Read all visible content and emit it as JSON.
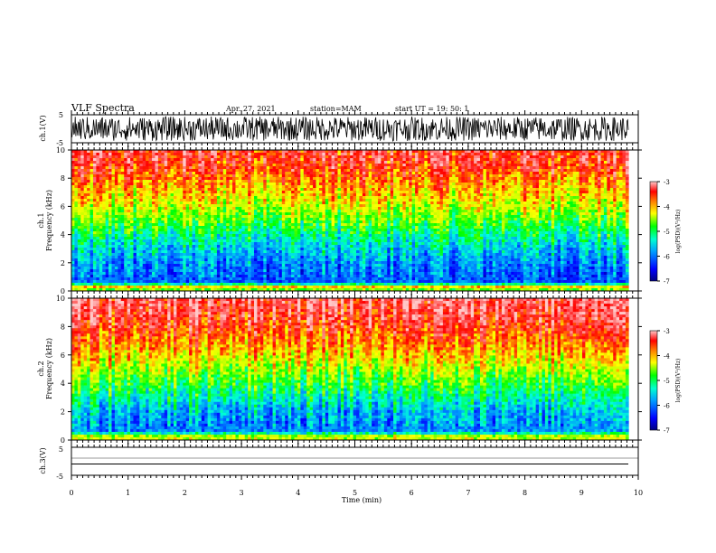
{
  "header": {
    "title": "VLF Spectra",
    "date": "Apr. 27, 2021",
    "station": "station=MAM",
    "start": "start  UT =   19: 50: 1"
  },
  "colors": {
    "spectrogram_scale": [
      "#00008b",
      "#0000ff",
      "#00bfff",
      "#00ffbf",
      "#00ff00",
      "#bfff00",
      "#ffff00",
      "#ffbf00",
      "#ff4000",
      "#ff0000",
      "#ffb0b0"
    ]
  },
  "chart_data": [
    {
      "type": "line",
      "panel": "waveform-ch1",
      "ylabel": "ch.1(V)",
      "ylim": [
        -5,
        5
      ],
      "yticks": [
        "5",
        "-5"
      ],
      "x_range_min": [
        0,
        9.83
      ],
      "description_of_series": "dense oscillating waveform spanning about +4.5 to -4 V throughout"
    },
    {
      "type": "heatmap",
      "panel": "spectrogram-ch1",
      "ylabel": "ch.1\nFrequency (kHz)",
      "ylim": [
        0,
        10
      ],
      "yticks": [
        "0",
        "2",
        "4",
        "6",
        "8",
        "10"
      ],
      "colorbar": {
        "label": "log(PSD)(V²/Hz)",
        "ticks": [
          "-3",
          "-4",
          "-5",
          "-6",
          "-7"
        ],
        "range": [
          -7,
          -3
        ]
      },
      "profile_kHz_vs_logPSD": [
        [
          0,
          -5
        ],
        [
          0.3,
          -4.2
        ],
        [
          0.6,
          -6.2
        ],
        [
          1,
          -6.2
        ],
        [
          2,
          -6.0
        ],
        [
          3,
          -5.7
        ],
        [
          4,
          -5.3
        ],
        [
          5,
          -4.9
        ],
        [
          6,
          -4.5
        ],
        [
          7,
          -4.2
        ],
        [
          8,
          -3.9
        ],
        [
          9,
          -3.6
        ],
        [
          10,
          -3.5
        ]
      ]
    },
    {
      "type": "heatmap",
      "panel": "spectrogram-ch2",
      "ylabel": "ch.2\nFrequency (kHz)",
      "ylim": [
        0,
        10
      ],
      "yticks": [
        "0",
        "2",
        "4",
        "6",
        "8",
        "10"
      ],
      "colorbar": {
        "label": "log(PSD)(V²/Hz)",
        "ticks": [
          "-3",
          "-4",
          "-5",
          "-6",
          "-7"
        ],
        "range": [
          -7,
          -3
        ]
      },
      "profile_kHz_vs_logPSD": [
        [
          0,
          -4.5
        ],
        [
          0.3,
          -4.6
        ],
        [
          0.6,
          -6.0
        ],
        [
          1,
          -6.0
        ],
        [
          2,
          -5.8
        ],
        [
          3,
          -5.4
        ],
        [
          4,
          -5.0
        ],
        [
          5,
          -4.6
        ],
        [
          6,
          -4.2
        ],
        [
          7,
          -3.9
        ],
        [
          8,
          -3.6
        ],
        [
          9,
          -3.4
        ],
        [
          10,
          -3.3
        ]
      ]
    },
    {
      "type": "line",
      "panel": "waveform-ch3",
      "ylabel": "ch.3(V)",
      "ylim": [
        -5,
        5
      ],
      "yticks": [
        "5",
        "0",
        "-5"
      ],
      "series": [
        {
          "x": [
            0,
            9.83
          ],
          "y": [
            -1.5,
            -1.5
          ]
        }
      ]
    }
  ],
  "xaxis": {
    "label": "Time (min)",
    "ticks": [
      "0",
      "1",
      "2",
      "3",
      "4",
      "5",
      "6",
      "7",
      "8",
      "9",
      "10"
    ],
    "range": [
      0,
      10
    ]
  }
}
